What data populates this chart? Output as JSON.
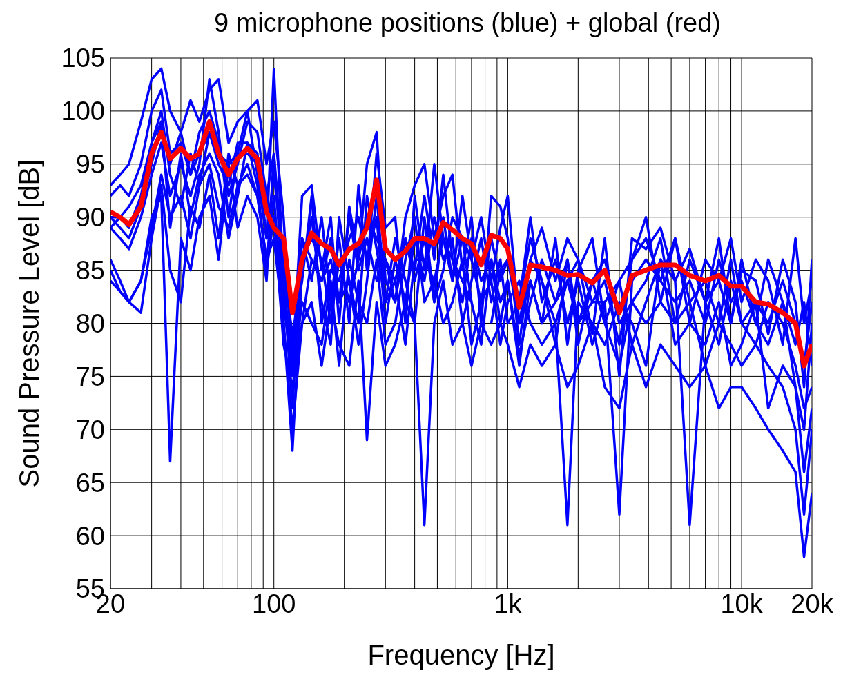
{
  "chart_data": {
    "type": "line",
    "title": "9 microphone positions (blue) + global (red)",
    "xlabel": "Frequency [Hz]",
    "ylabel": "Sound Pressure Level [dB]",
    "log": "x",
    "grid": true,
    "xlim": [
      20,
      20000
    ],
    "ylim": [
      55,
      105
    ],
    "xticks": [
      20,
      {
        "value": 30,
        "label": null
      },
      {
        "value": 40,
        "label": null
      },
      {
        "value": 50,
        "label": null
      },
      {
        "value": 60,
        "label": null
      },
      {
        "value": 70,
        "label": null
      },
      {
        "value": 80,
        "label": null
      },
      {
        "value": 90,
        "label": null
      },
      100,
      {
        "value": 200,
        "label": null
      },
      {
        "value": 300,
        "label": null
      },
      {
        "value": 400,
        "label": null
      },
      {
        "value": 500,
        "label": null
      },
      {
        "value": 600,
        "label": null
      },
      {
        "value": 700,
        "label": null
      },
      {
        "value": 800,
        "label": null
      },
      {
        "value": 900,
        "label": null
      },
      {
        "value": 1000,
        "label": "1k"
      },
      {
        "value": 2000,
        "label": null
      },
      {
        "value": 3000,
        "label": null
      },
      {
        "value": 4000,
        "label": null
      },
      {
        "value": 5000,
        "label": null
      },
      {
        "value": 6000,
        "label": null
      },
      {
        "value": 7000,
        "label": null
      },
      {
        "value": 8000,
        "label": null
      },
      {
        "value": 9000,
        "label": null
      },
      {
        "value": 10000,
        "label": "10k"
      },
      {
        "value": 20000,
        "label": "20k"
      }
    ],
    "yticks": [
      55,
      60,
      65,
      70,
      75,
      80,
      85,
      90,
      95,
      100,
      105
    ],
    "x": [
      20,
      22,
      24,
      27,
      30,
      33,
      36,
      40,
      44,
      48,
      53,
      58,
      64,
      70,
      77,
      85,
      93,
      100,
      110,
      120,
      132,
      145,
      160,
      175,
      190,
      210,
      230,
      250,
      275,
      300,
      330,
      365,
      400,
      440,
      485,
      530,
      580,
      640,
      700,
      770,
      850,
      930,
      1000,
      1120,
      1250,
      1400,
      1600,
      1800,
      2000,
      2300,
      2600,
      3000,
      3400,
      3900,
      4500,
      5200,
      6000,
      7000,
      8000,
      9000,
      10000,
      11500,
      13000,
      15000,
      17000,
      18500,
      20000
    ],
    "series": [
      {
        "color": "#0000ff",
        "values": [
          93,
          94,
          95,
          99,
          103,
          104,
          100,
          98,
          101,
          99,
          102,
          103,
          97,
          99,
          100,
          101,
          95,
          99,
          90,
          76,
          92,
          93,
          85,
          90,
          80,
          91,
          86,
          95,
          98,
          84,
          82,
          90,
          93,
          95,
          88,
          92,
          94,
          85,
          90,
          80,
          92,
          91,
          88,
          78,
          86,
          89,
          84,
          88,
          86,
          79,
          88,
          75,
          88,
          87,
          89,
          84,
          87,
          82,
          88,
          80,
          85,
          84,
          79,
          86,
          82,
          74,
          86
        ]
      },
      {
        "color": "#0000ff",
        "values": [
          89,
          88,
          87,
          90,
          94,
          97,
          92,
          95,
          92,
          95,
          103,
          98,
          90,
          96,
          100,
          94,
          88,
          104,
          84,
          72,
          88,
          84,
          90,
          82,
          88,
          80,
          93,
          85,
          96,
          89,
          90,
          80,
          92,
          85,
          95,
          88,
          84,
          92,
          86,
          90,
          84,
          89,
          92,
          80,
          84,
          80,
          88,
          78,
          85,
          88,
          80,
          84,
          86,
          90,
          82,
          88,
          80,
          86,
          84,
          88,
          82,
          86,
          84,
          78,
          88,
          80,
          84
        ]
      },
      {
        "color": "#0000ff",
        "values": [
          86,
          84,
          82,
          81,
          88,
          93,
          85,
          82,
          91,
          89,
          94,
          88,
          96,
          93,
          94,
          92,
          86,
          92,
          80,
          68,
          85,
          90,
          82,
          78,
          90,
          84,
          80,
          92,
          87,
          82,
          88,
          84,
          80,
          90,
          82,
          85,
          90,
          88,
          82,
          null,
          80,
          85,
          86,
          82,
          88,
          84,
          78,
          86,
          80,
          84,
          86,
          80,
          82,
          84,
          88,
          80,
          86,
          82,
          78,
          84,
          80,
          78,
          82,
          80,
          76,
          72,
          74
        ]
      },
      {
        "color": "#0000ff",
        "values": [
          90,
          89,
          88,
          91,
          95,
          99,
          89,
          96,
          90,
          94,
          96,
          94,
          88,
          92,
          97,
          93,
          85,
          90,
          78,
          74,
          80,
          86,
          84,
          88,
          82,
          90,
          85,
          88,
          84,
          86,
          84,
          88,
          85,
          92,
          86,
          94,
          86,
          82,
          88,
          84,
          86,
          82,
          84,
          77,
          82,
          86,
          82,
          84,
          80,
          82,
          84,
          78,
          86,
          88,
          84,
          82,
          84,
          80,
          86,
          82,
          84,
          80,
          86,
          82,
          78,
          82,
          76
        ]
      },
      {
        "color": "#0000ff",
        "values": [
          92,
          93,
          92,
          95,
          100,
          102,
          96,
          97,
          94,
          98,
          100,
          97,
          92,
          95,
          99,
          98,
          92,
          96,
          85,
          79,
          84,
          92,
          80,
          85,
          84,
          88,
          90,
          86,
          90,
          80,
          86,
          82,
          88,
          84,
          90,
          86,
          88,
          80,
          84,
          88,
          82,
          86,
          80,
          82,
          90,
          82,
          86,
          80,
          84,
          78,
          82,
          62,
          84,
          86,
          84,
          88,
          82,
          84,
          80,
          86,
          80,
          82,
          80,
          84,
          80,
          76,
          82
        ]
      },
      {
        "color": "#0000ff",
        "values": [
          85,
          83,
          82,
          84,
          90,
          92,
          67,
          88,
          85,
          90,
          92,
          86,
          95,
          89,
          92,
          90,
          84,
          96,
          82,
          75,
          82,
          80,
          78,
          84,
          76,
          86,
          82,
          80,
          86,
          78,
          80,
          86,
          90,
          82,
          84,
          80,
          82,
          86,
          78,
          82,
          84,
          78,
          82,
          84,
          80,
          78,
          80,
          61,
          82,
          80,
          78,
          82,
          80,
          76,
          86,
          78,
          80,
          78,
          82,
          76,
          78,
          82,
          72,
          76,
          74,
          66,
          72
        ]
      },
      {
        "color": "#0000ff",
        "values": [
          90,
          90,
          89,
          92,
          97,
          100,
          94,
          91,
          96,
          93,
          98,
          95,
          93,
          97,
          97,
          96,
          88,
          94,
          86,
          78,
          86,
          88,
          86,
          80,
          86,
          82,
          86,
          90,
          88,
          86,
          82,
          88,
          84,
          88,
          82,
          90,
          84,
          88,
          86,
          82,
          88,
          84,
          86,
          80,
          86,
          84,
          80,
          84,
          86,
          82,
          82,
          84,
          78,
          82,
          86,
          84,
          61,
          82,
          84,
          80,
          86,
          80,
          78,
          82,
          74,
          70,
          80
        ]
      },
      {
        "color": "#0000ff",
        "values": [
          89,
          90,
          91,
          93,
          97,
          99,
          95,
          98,
          94,
          96,
          98,
          96,
          95,
          96,
          96,
          95,
          91,
          90,
          84,
          76,
          88,
          86,
          84,
          86,
          82,
          84,
          78,
          84,
          92,
          82,
          84,
          78,
          86,
          86,
          84,
          88,
          86,
          84,
          82,
          78,
          86,
          80,
          84,
          76,
          84,
          80,
          82,
          86,
          78,
          84,
          80,
          76,
          82,
          80,
          82,
          80,
          82,
          76,
          80,
          78,
          76,
          78,
          76,
          74,
          70,
          62,
          70
        ]
      },
      {
        "color": "#0000ff",
        "values": [
          84,
          83,
          82,
          84,
          89,
          94,
          90,
          92,
          88,
          93,
          95,
          91,
          89,
          93,
          95,
          92,
          86,
          88,
          80,
          70,
          80,
          82,
          76,
          82,
          78,
          76,
          84,
          69,
          82,
          76,
          78,
          82,
          80,
          61,
          80,
          84,
          78,
          80,
          76,
          80,
          78,
          80,
          78,
          74,
          78,
          76,
          78,
          74,
          76,
          80,
          74,
          72,
          78,
          74,
          78,
          76,
          74,
          76,
          72,
          74,
          74,
          72,
          70,
          68,
          66,
          58,
          64
        ]
      },
      {
        "color": "#ff0000",
        "values": [
          90.5,
          90,
          89.3,
          91,
          96,
          98,
          95.5,
          96.5,
          95.5,
          96,
          99,
          96,
          94,
          95.5,
          96.5,
          95.5,
          90.5,
          89,
          88,
          81,
          86,
          88.5,
          87.5,
          87,
          85.5,
          87,
          87.5,
          89,
          93.5,
          87,
          86,
          86.8,
          88,
          88,
          87.5,
          89.5,
          88.8,
          88,
          87.5,
          85.5,
          88.3,
          88,
          87,
          81.5,
          85.5,
          85.3,
          85,
          84.5,
          84.6,
          83.8,
          85,
          81,
          84.5,
          85,
          85.5,
          85.5,
          84.5,
          84,
          84.5,
          83.5,
          83.5,
          82,
          81.8,
          81,
          80,
          76,
          78
        ]
      }
    ]
  }
}
